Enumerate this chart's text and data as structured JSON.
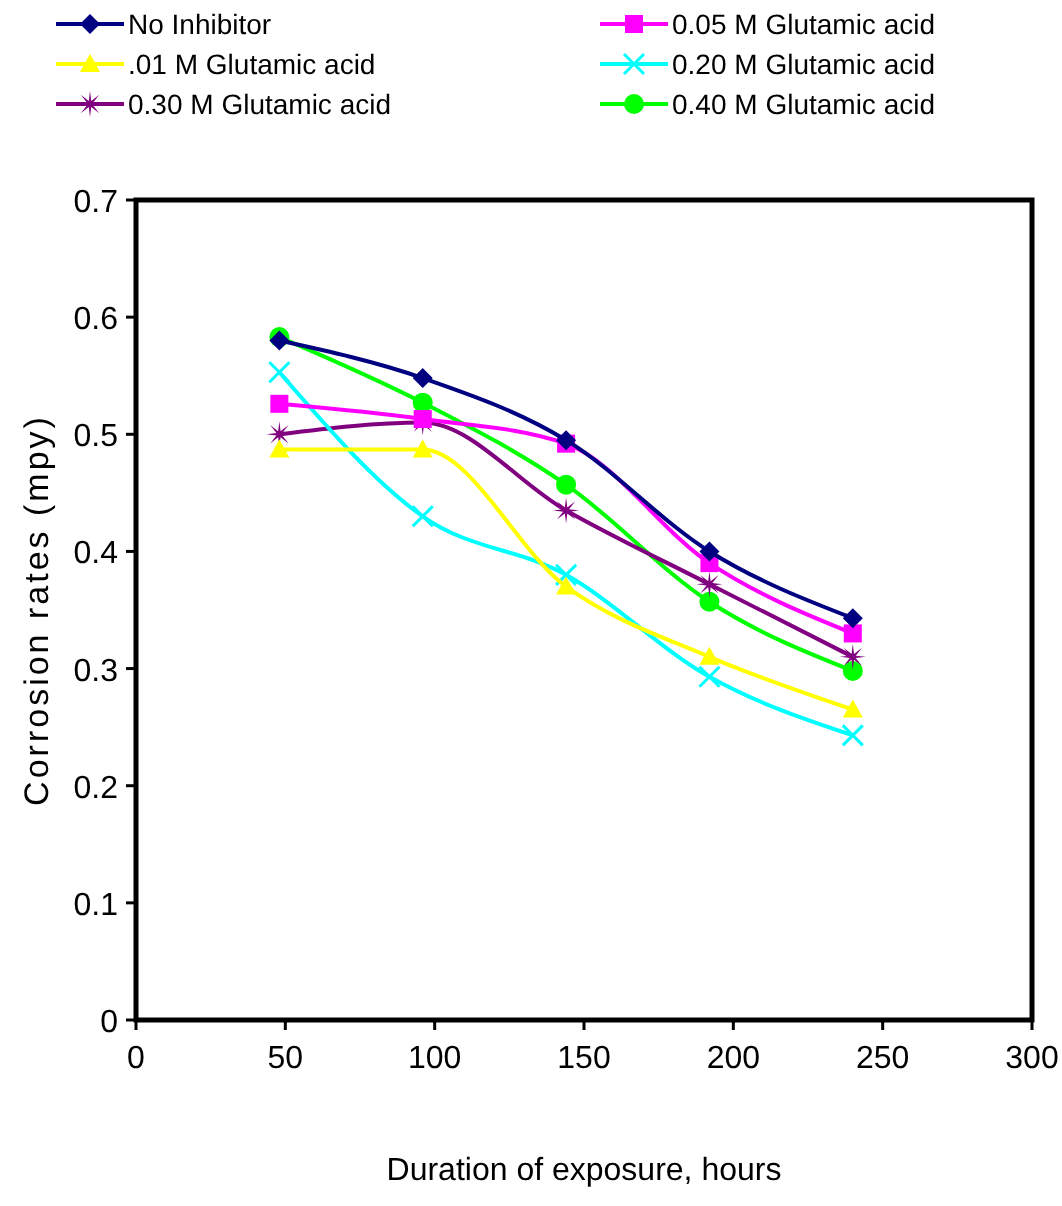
{
  "chart_data": {
    "type": "line",
    "xlabel": "Duration of exposure, hours",
    "ylabel": "Corrosion rates (mpy)",
    "x": [
      48,
      96,
      144,
      192,
      240
    ],
    "xlim": [
      0,
      300
    ],
    "xticks": [
      0,
      50,
      100,
      150,
      200,
      250,
      300
    ],
    "ylim": [
      0,
      0.7
    ],
    "yticks": [
      0,
      0.1,
      0.2,
      0.3,
      0.4,
      0.5,
      0.6,
      0.7
    ],
    "legend": "top",
    "grid": false,
    "line_style": "solid",
    "series": [
      {
        "name": "No Inhibitor",
        "color": "#000080",
        "marker": "diamond",
        "values": [
          0.58,
          0.548,
          0.495,
          0.4,
          0.343
        ]
      },
      {
        "name": "0.05 M Glutamic acid",
        "color": "#ff00ff",
        "marker": "square",
        "values": [
          0.526,
          0.513,
          0.492,
          0.39,
          0.33
        ]
      },
      {
        "name": ".01 M Glutamic acid",
        "color": "#ffff00",
        "marker": "triangle",
        "values": [
          0.487,
          0.487,
          0.37,
          0.31,
          0.265
        ]
      },
      {
        "name": "0.20 M Glutamic acid",
        "color": "#00ffff",
        "marker": "cross",
        "values": [
          0.553,
          0.43,
          0.38,
          0.293,
          0.243
        ]
      },
      {
        "name": "0.30 M Glutamic acid",
        "color": "#800080",
        "marker": "star",
        "values": [
          0.5,
          0.51,
          0.435,
          0.372,
          0.31
        ]
      },
      {
        "name": "0.40 M Glutamic acid",
        "color": "#00ff00",
        "marker": "circle",
        "values": [
          0.583,
          0.527,
          0.457,
          0.357,
          0.298
        ]
      }
    ]
  }
}
